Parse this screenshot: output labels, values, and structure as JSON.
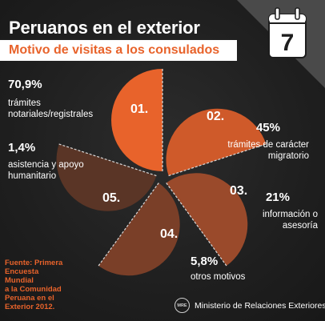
{
  "header": {
    "title": "Peruanos en el exterior",
    "subtitle": "Motivo de visitas a los consulados",
    "badge_number": "7",
    "badge_icon": "calendar-icon"
  },
  "colors": {
    "orange": "#e8632b",
    "accent": "#ffffff",
    "background": "#1e1e1e"
  },
  "chart_data": {
    "type": "pie",
    "title": "Motivo de visitas a los consulados",
    "categories": [
      "trámites notariales/registrales",
      "trámites de carácter migratorio",
      "información o asesoría",
      "otros motivos",
      "asistencia y apoyo humanitario"
    ],
    "items": [
      {
        "code": "01.",
        "value": 70.9,
        "percent_label": "70,9%",
        "description": [
          "trámites",
          "notariales/registrales"
        ],
        "color": "#e8632b"
      },
      {
        "code": "02.",
        "value": 45,
        "percent_label": "45%",
        "description": [
          "trámites de carácter",
          "migratorio"
        ],
        "color": "#cf5a2a"
      },
      {
        "code": "03.",
        "value": 21,
        "percent_label": "21%",
        "description": [
          "información o",
          "asesoría"
        ],
        "color": "#9a4a2b"
      },
      {
        "code": "04.",
        "value": 5.8,
        "percent_label": "5,8%",
        "description": [
          "otros motivos"
        ],
        "color": "#7a3f28"
      },
      {
        "code": "05.",
        "value": 1.4,
        "percent_label": "1,4%",
        "description": [
          "asistencia y apoyo",
          "humanitario"
        ],
        "color": "#5a3526"
      }
    ]
  },
  "footer": {
    "source_lines": [
      "Fuente: Primera",
      "Encuesta Mundial",
      "a la Comunidad",
      "Peruana en el",
      "Exterior 2012."
    ],
    "ministry": "Ministerio de Relaciones Exteriores",
    "seal_text": "MRE"
  }
}
